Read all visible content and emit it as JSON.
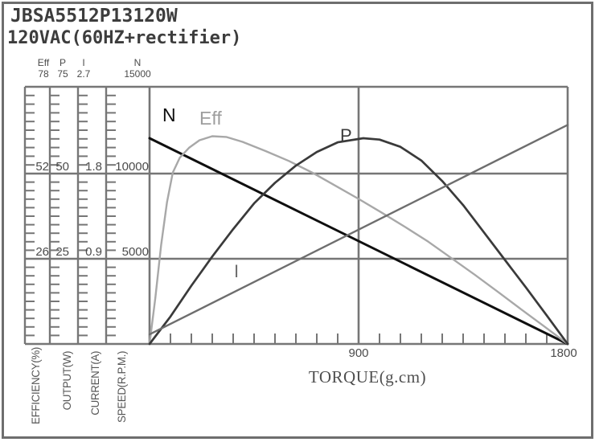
{
  "header": {
    "title": "JBSA5512P13120W",
    "subtitle": "120VAC(60HZ+rectifier)"
  },
  "colors": {
    "grid": "#767676",
    "frame_border": "#6e6e6e",
    "text": "#4b4b4b",
    "title_text": "#3d3d3d"
  },
  "chart_data": {
    "type": "line",
    "x_axis": {
      "label": "TORQUE(g.cm)",
      "min": 0,
      "max": 1800,
      "labeled_ticks": [
        "900",
        "1800"
      ],
      "minor_tick_step": 90
    },
    "y_axes": [
      {
        "name": "Eff",
        "unit_label": "EFFICIENCY(%)",
        "min": 0,
        "max": 78,
        "tick_labels": [
          "78",
          "52",
          "26"
        ]
      },
      {
        "name": "P",
        "unit_label": "OUTPUT(W)",
        "min": 0,
        "max": 75,
        "tick_labels": [
          "75",
          "50",
          "25"
        ]
      },
      {
        "name": "I",
        "unit_label": "CURRENT(A)",
        "min": 0,
        "max": 2.7,
        "tick_labels": [
          "2.7",
          "1.8",
          "0.9"
        ]
      },
      {
        "name": "N",
        "unit_label": "SPEED(R.P.M.)",
        "min": 0,
        "max": 15000,
        "tick_labels": [
          "15000",
          "10000",
          "5000"
        ]
      }
    ],
    "series": [
      {
        "name": "N",
        "axis": "N",
        "color": "#0f0f0f",
        "points": [
          [
            0,
            12000
          ],
          [
            1800,
            0
          ]
        ]
      },
      {
        "name": "Eff",
        "axis": "Eff",
        "color": "#a8a8a8",
        "points": [
          [
            0,
            0
          ],
          [
            25,
            14
          ],
          [
            50,
            30
          ],
          [
            75,
            43
          ],
          [
            100,
            52
          ],
          [
            130,
            56.5
          ],
          [
            170,
            59.5
          ],
          [
            215,
            61.8
          ],
          [
            270,
            63
          ],
          [
            330,
            62.8
          ],
          [
            400,
            61.3
          ],
          [
            500,
            58.5
          ],
          [
            600,
            55.5
          ],
          [
            700,
            52
          ],
          [
            800,
            48
          ],
          [
            900,
            44
          ],
          [
            1000,
            39.8
          ],
          [
            1100,
            35.5
          ],
          [
            1200,
            31
          ],
          [
            1300,
            26
          ],
          [
            1400,
            21
          ],
          [
            1500,
            15.8
          ],
          [
            1600,
            10.5
          ],
          [
            1700,
            5.3
          ],
          [
            1800,
            0
          ]
        ]
      },
      {
        "name": "P",
        "axis": "P",
        "color": "#3a3a3a",
        "points": [
          [
            0,
            0
          ],
          [
            90,
            8
          ],
          [
            180,
            17
          ],
          [
            270,
            25.5
          ],
          [
            360,
            33.5
          ],
          [
            450,
            41
          ],
          [
            540,
            47
          ],
          [
            630,
            52
          ],
          [
            720,
            56
          ],
          [
            810,
            58.8
          ],
          [
            920,
            60
          ],
          [
            990,
            59.6
          ],
          [
            1080,
            57.5
          ],
          [
            1170,
            53.5
          ],
          [
            1260,
            47.5
          ],
          [
            1350,
            40.5
          ],
          [
            1440,
            32.5
          ],
          [
            1530,
            24.5
          ],
          [
            1620,
            16.5
          ],
          [
            1710,
            8.3
          ],
          [
            1800,
            0
          ]
        ]
      },
      {
        "name": "I",
        "axis": "I",
        "color": "#6e6e6e",
        "points": [
          [
            0,
            0.1
          ],
          [
            1800,
            2.3
          ]
        ]
      }
    ],
    "legend_position": "labels-on-curves",
    "grid": true
  }
}
